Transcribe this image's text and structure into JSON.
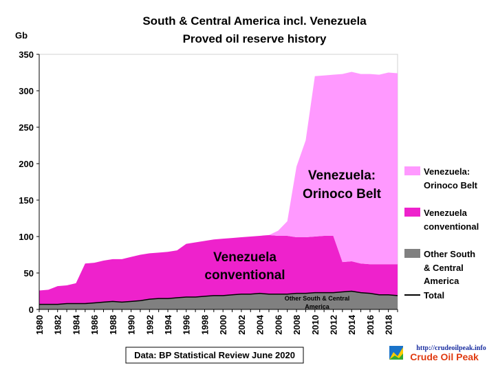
{
  "chart_data": {
    "type": "area",
    "title": "South & Central America incl. Venezuela",
    "subtitle": "Proved oil reserve history",
    "ylabel": "Gb",
    "ylim": [
      0,
      350
    ],
    "yticks": [
      0,
      50,
      100,
      150,
      200,
      250,
      300,
      350
    ],
    "x": [
      1980,
      1981,
      1982,
      1983,
      1984,
      1985,
      1986,
      1987,
      1988,
      1989,
      1990,
      1991,
      1992,
      1993,
      1994,
      1995,
      1996,
      1997,
      1998,
      1999,
      2000,
      2001,
      2002,
      2003,
      2004,
      2005,
      2006,
      2007,
      2008,
      2009,
      2010,
      2011,
      2012,
      2013,
      2014,
      2015,
      2016,
      2017,
      2018,
      2019
    ],
    "xtick_labels": [
      "1980",
      "1982",
      "1984",
      "1986",
      "1988",
      "1990",
      "1992",
      "1994",
      "1996",
      "1998",
      "2000",
      "2002",
      "2004",
      "2006",
      "2008",
      "2010",
      "2012",
      "2014",
      "2016",
      "2018"
    ],
    "stacked": true,
    "series": [
      {
        "name": "Other South & Central America",
        "color": "#808080",
        "values": [
          7,
          7,
          7,
          8,
          8,
          8,
          9,
          10,
          11,
          10,
          11,
          12,
          14,
          15,
          15,
          16,
          17,
          17,
          18,
          19,
          19,
          20,
          21,
          21,
          22,
          21,
          21,
          21,
          22,
          22,
          23,
          23,
          23,
          24,
          25,
          23,
          22,
          20,
          20,
          19
        ]
      },
      {
        "name": "Venezuela conventional",
        "color": "#ee22cc",
        "values": [
          19,
          20,
          25,
          25,
          28,
          55,
          55,
          57,
          58,
          59,
          61,
          63,
          63,
          63,
          64,
          65,
          73,
          75,
          76,
          77,
          78,
          78,
          78,
          79,
          79,
          81,
          80,
          80,
          77,
          77,
          77,
          78,
          78,
          41,
          41,
          40,
          40,
          42,
          42,
          43
        ]
      },
      {
        "name": "Venezuela: Orinoco Belt",
        "color": "#ff99ff",
        "values": [
          0,
          0,
          0,
          0,
          0,
          0,
          0,
          0,
          0,
          0,
          0,
          0,
          0,
          0,
          0,
          0,
          0,
          0,
          0,
          0,
          0,
          0,
          0,
          0,
          0,
          0,
          7,
          20,
          97,
          133,
          220,
          220,
          221,
          258,
          260,
          260,
          261,
          260,
          263,
          262
        ]
      }
    ],
    "total": {
      "name": "Total",
      "color": "#000000"
    },
    "legend_position": "right",
    "legend": [
      {
        "line1": "Venezuela:",
        "line2": "Orinoco Belt",
        "line3": "",
        "color": "#ff99ff"
      },
      {
        "line1": "Venezuela",
        "line2": "conventional",
        "line3": "",
        "color": "#ee22cc"
      },
      {
        "line1": "Other South",
        "line2": "& Central",
        "line3": "America",
        "color": "#808080"
      },
      {
        "line1": "Total",
        "line2": "",
        "line3": "",
        "color": "#000000"
      }
    ],
    "annotations": {
      "orinoco_line1": "Venezuela:",
      "orinoco_line2": "Orinoco Belt",
      "conv_line1": "Venezuela",
      "conv_line2": "conventional",
      "other_line1": "Other South & Central",
      "other_line2": "America"
    },
    "grid": false
  },
  "footer": {
    "source": "Data: BP Statistical Review June 2020",
    "url": "http://crudeoilpeak.info",
    "brand": "Crude Oil Peak"
  }
}
